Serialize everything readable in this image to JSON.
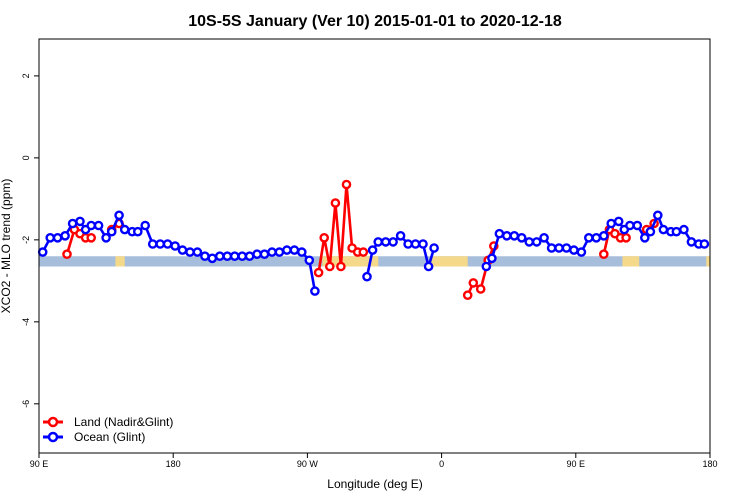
{
  "chart_data": {
    "type": "line",
    "title": "10S-5S January (Ver 10)   2015-01-01 to 2020-12-18",
    "xlabel": "Longitude (deg E)",
    "ylabel": "XCO2 - MLO trend (ppm)",
    "xlim": [
      90,
      450
    ],
    "ylim": [
      -7.2,
      2.9
    ],
    "x_ticks": [
      {
        "value": 90,
        "label": "90 E"
      },
      {
        "value": 162,
        "label": "180"
      },
      {
        "value": 234,
        "label": "90 W"
      },
      {
        "value": 306,
        "label": "0"
      },
      {
        "value": 378,
        "label": "90 E"
      },
      {
        "value": 450,
        "label": "180"
      }
    ],
    "y_ticks": [
      {
        "value": 2,
        "label": "2"
      },
      {
        "value": 0,
        "label": "0"
      },
      {
        "value": -2,
        "label": "-2"
      },
      {
        "value": -4,
        "label": "-4"
      },
      {
        "value": -6,
        "label": "-6"
      }
    ],
    "land_band": {
      "y_low": -2.65,
      "y_high": -2.4,
      "ocean_color": "#a6bddb",
      "land_color": "#f5d98a"
    },
    "land_band_segments": [
      [
        131,
        136
      ],
      [
        242,
        272
      ],
      [
        300,
        320
      ],
      [
        403,
        412
      ],
      [
        448,
        450
      ]
    ],
    "series": [
      {
        "name": "Land (Nadir&Glint)",
        "color": "#ff0000",
        "segments": [
          [
            [
              105,
              -2.35
            ],
            [
              109,
              -1.75
            ],
            [
              112,
              -1.85
            ],
            [
              115,
              -1.95
            ],
            [
              118,
              -1.95
            ]
          ],
          [
            [
              129,
              -1.75
            ],
            [
              133,
              -1.6
            ]
          ],
          [
            [
              240,
              -2.8
            ],
            [
              243,
              -1.95
            ],
            [
              246,
              -2.65
            ],
            [
              249,
              -1.1
            ],
            [
              252,
              -2.65
            ],
            [
              255,
              -0.65
            ],
            [
              258,
              -2.2
            ],
            [
              261,
              -2.3
            ],
            [
              264,
              -2.3
            ]
          ],
          [
            [
              320,
              -3.35
            ],
            [
              323,
              -3.05
            ],
            [
              327,
              -3.2
            ],
            [
              331,
              -2.5
            ],
            [
              334,
              -2.15
            ]
          ],
          [
            [
              393,
              -2.35
            ],
            [
              396,
              -1.75
            ],
            [
              399,
              -1.85
            ],
            [
              402,
              -1.95
            ],
            [
              405,
              -1.95
            ]
          ],
          [
            [
              416,
              -1.75
            ],
            [
              420,
              -1.6
            ]
          ]
        ]
      },
      {
        "name": "Ocean (Glint)",
        "color": "#0000ff",
        "segments": [
          [
            [
              92,
              -2.3
            ],
            [
              96,
              -1.95
            ],
            [
              100,
              -1.95
            ],
            [
              104,
              -1.9
            ],
            [
              108,
              -1.6
            ],
            [
              112,
              -1.55
            ],
            [
              115,
              -1.75
            ],
            [
              118,
              -1.65
            ],
            [
              122,
              -1.65
            ],
            [
              126,
              -1.95
            ],
            [
              129,
              -1.8
            ],
            [
              133,
              -1.4
            ],
            [
              136,
              -1.75
            ],
            [
              140,
              -1.8
            ],
            [
              143,
              -1.8
            ],
            [
              147,
              -1.65
            ],
            [
              151,
              -2.1
            ],
            [
              155,
              -2.1
            ],
            [
              159,
              -2.1
            ],
            [
              163,
              -2.15
            ],
            [
              167,
              -2.25
            ],
            [
              171,
              -2.3
            ],
            [
              175,
              -2.3
            ],
            [
              179,
              -2.4
            ],
            [
              183,
              -2.45
            ],
            [
              187,
              -2.4
            ],
            [
              191,
              -2.4
            ],
            [
              195,
              -2.4
            ],
            [
              199,
              -2.4
            ],
            [
              203,
              -2.4
            ],
            [
              207,
              -2.35
            ],
            [
              211,
              -2.35
            ],
            [
              215,
              -2.3
            ],
            [
              219,
              -2.3
            ],
            [
              223,
              -2.25
            ],
            [
              227,
              -2.25
            ],
            [
              231,
              -2.3
            ],
            [
              235,
              -2.5
            ],
            [
              238,
              -3.25
            ]
          ],
          [
            [
              266,
              -2.9
            ],
            [
              269,
              -2.25
            ],
            [
              272,
              -2.05
            ],
            [
              276,
              -2.05
            ],
            [
              280,
              -2.05
            ],
            [
              284,
              -1.9
            ],
            [
              288,
              -2.1
            ],
            [
              292,
              -2.1
            ],
            [
              296,
              -2.1
            ],
            [
              299,
              -2.65
            ],
            [
              302,
              -2.2
            ]
          ],
          [
            [
              330,
              -2.65
            ],
            [
              333,
              -2.45
            ],
            [
              337,
              -1.85
            ],
            [
              341,
              -1.9
            ],
            [
              345,
              -1.9
            ],
            [
              349,
              -1.95
            ],
            [
              353,
              -2.05
            ],
            [
              357,
              -2.05
            ],
            [
              361,
              -1.95
            ],
            [
              365,
              -2.2
            ],
            [
              369,
              -2.2
            ],
            [
              373,
              -2.2
            ],
            [
              377,
              -2.25
            ],
            [
              381,
              -2.3
            ],
            [
              385,
              -1.95
            ],
            [
              389,
              -1.95
            ],
            [
              393,
              -1.9
            ],
            [
              397,
              -1.6
            ],
            [
              401,
              -1.55
            ],
            [
              404,
              -1.75
            ],
            [
              407,
              -1.65
            ],
            [
              411,
              -1.65
            ],
            [
              415,
              -1.95
            ],
            [
              418,
              -1.8
            ],
            [
              422,
              -1.4
            ],
            [
              425,
              -1.75
            ],
            [
              429,
              -1.8
            ],
            [
              432,
              -1.8
            ],
            [
              436,
              -1.75
            ],
            [
              440,
              -2.05
            ],
            [
              444,
              -2.1
            ],
            [
              447,
              -2.1
            ]
          ]
        ]
      }
    ],
    "legend_position": "bottom-left"
  }
}
